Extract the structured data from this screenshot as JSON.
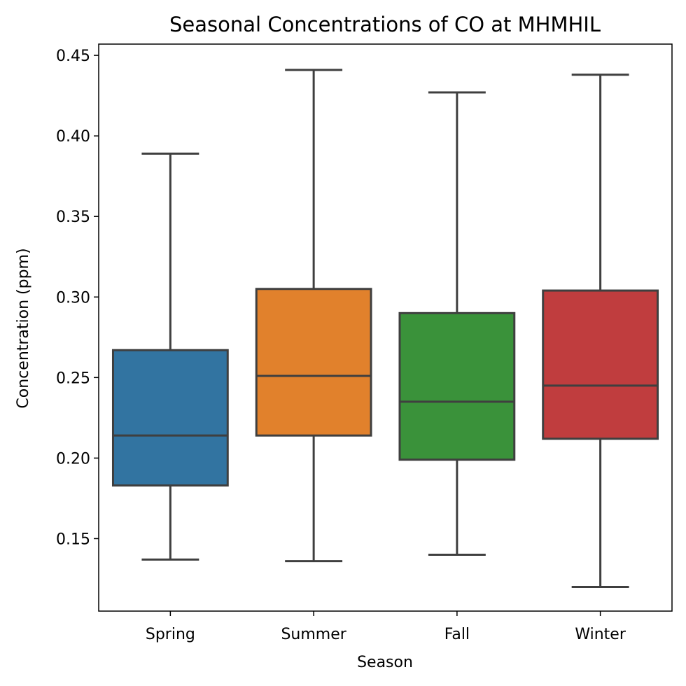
{
  "chart_data": {
    "type": "boxplot",
    "title": "Seasonal Concentrations of CO at MHMHIL",
    "xlabel": "Season",
    "ylabel": "Concentration (ppm)",
    "ylim": [
      0.105,
      0.457
    ],
    "yticks": [
      0.15,
      0.2,
      0.25,
      0.3,
      0.35,
      0.4,
      0.45
    ],
    "ytick_labels": [
      "0.15",
      "0.20",
      "0.25",
      "0.30",
      "0.35",
      "0.40",
      "0.45"
    ],
    "categories": [
      "Spring",
      "Summer",
      "Fall",
      "Winter"
    ],
    "boxes": [
      {
        "category": "Spring",
        "whisker_low": 0.137,
        "q1": 0.183,
        "median": 0.214,
        "q3": 0.267,
        "whisker_high": 0.389,
        "color": "#3274a1"
      },
      {
        "category": "Summer",
        "whisker_low": 0.136,
        "q1": 0.214,
        "median": 0.251,
        "q3": 0.305,
        "whisker_high": 0.441,
        "color": "#e1812c"
      },
      {
        "category": "Fall",
        "whisker_low": 0.14,
        "q1": 0.199,
        "median": 0.235,
        "q3": 0.29,
        "whisker_high": 0.427,
        "color": "#3a923a"
      },
      {
        "category": "Winter",
        "whisker_low": 0.12,
        "q1": 0.212,
        "median": 0.245,
        "q3": 0.304,
        "whisker_high": 0.438,
        "color": "#c03d3e"
      }
    ],
    "grid": false,
    "legend": "none"
  }
}
